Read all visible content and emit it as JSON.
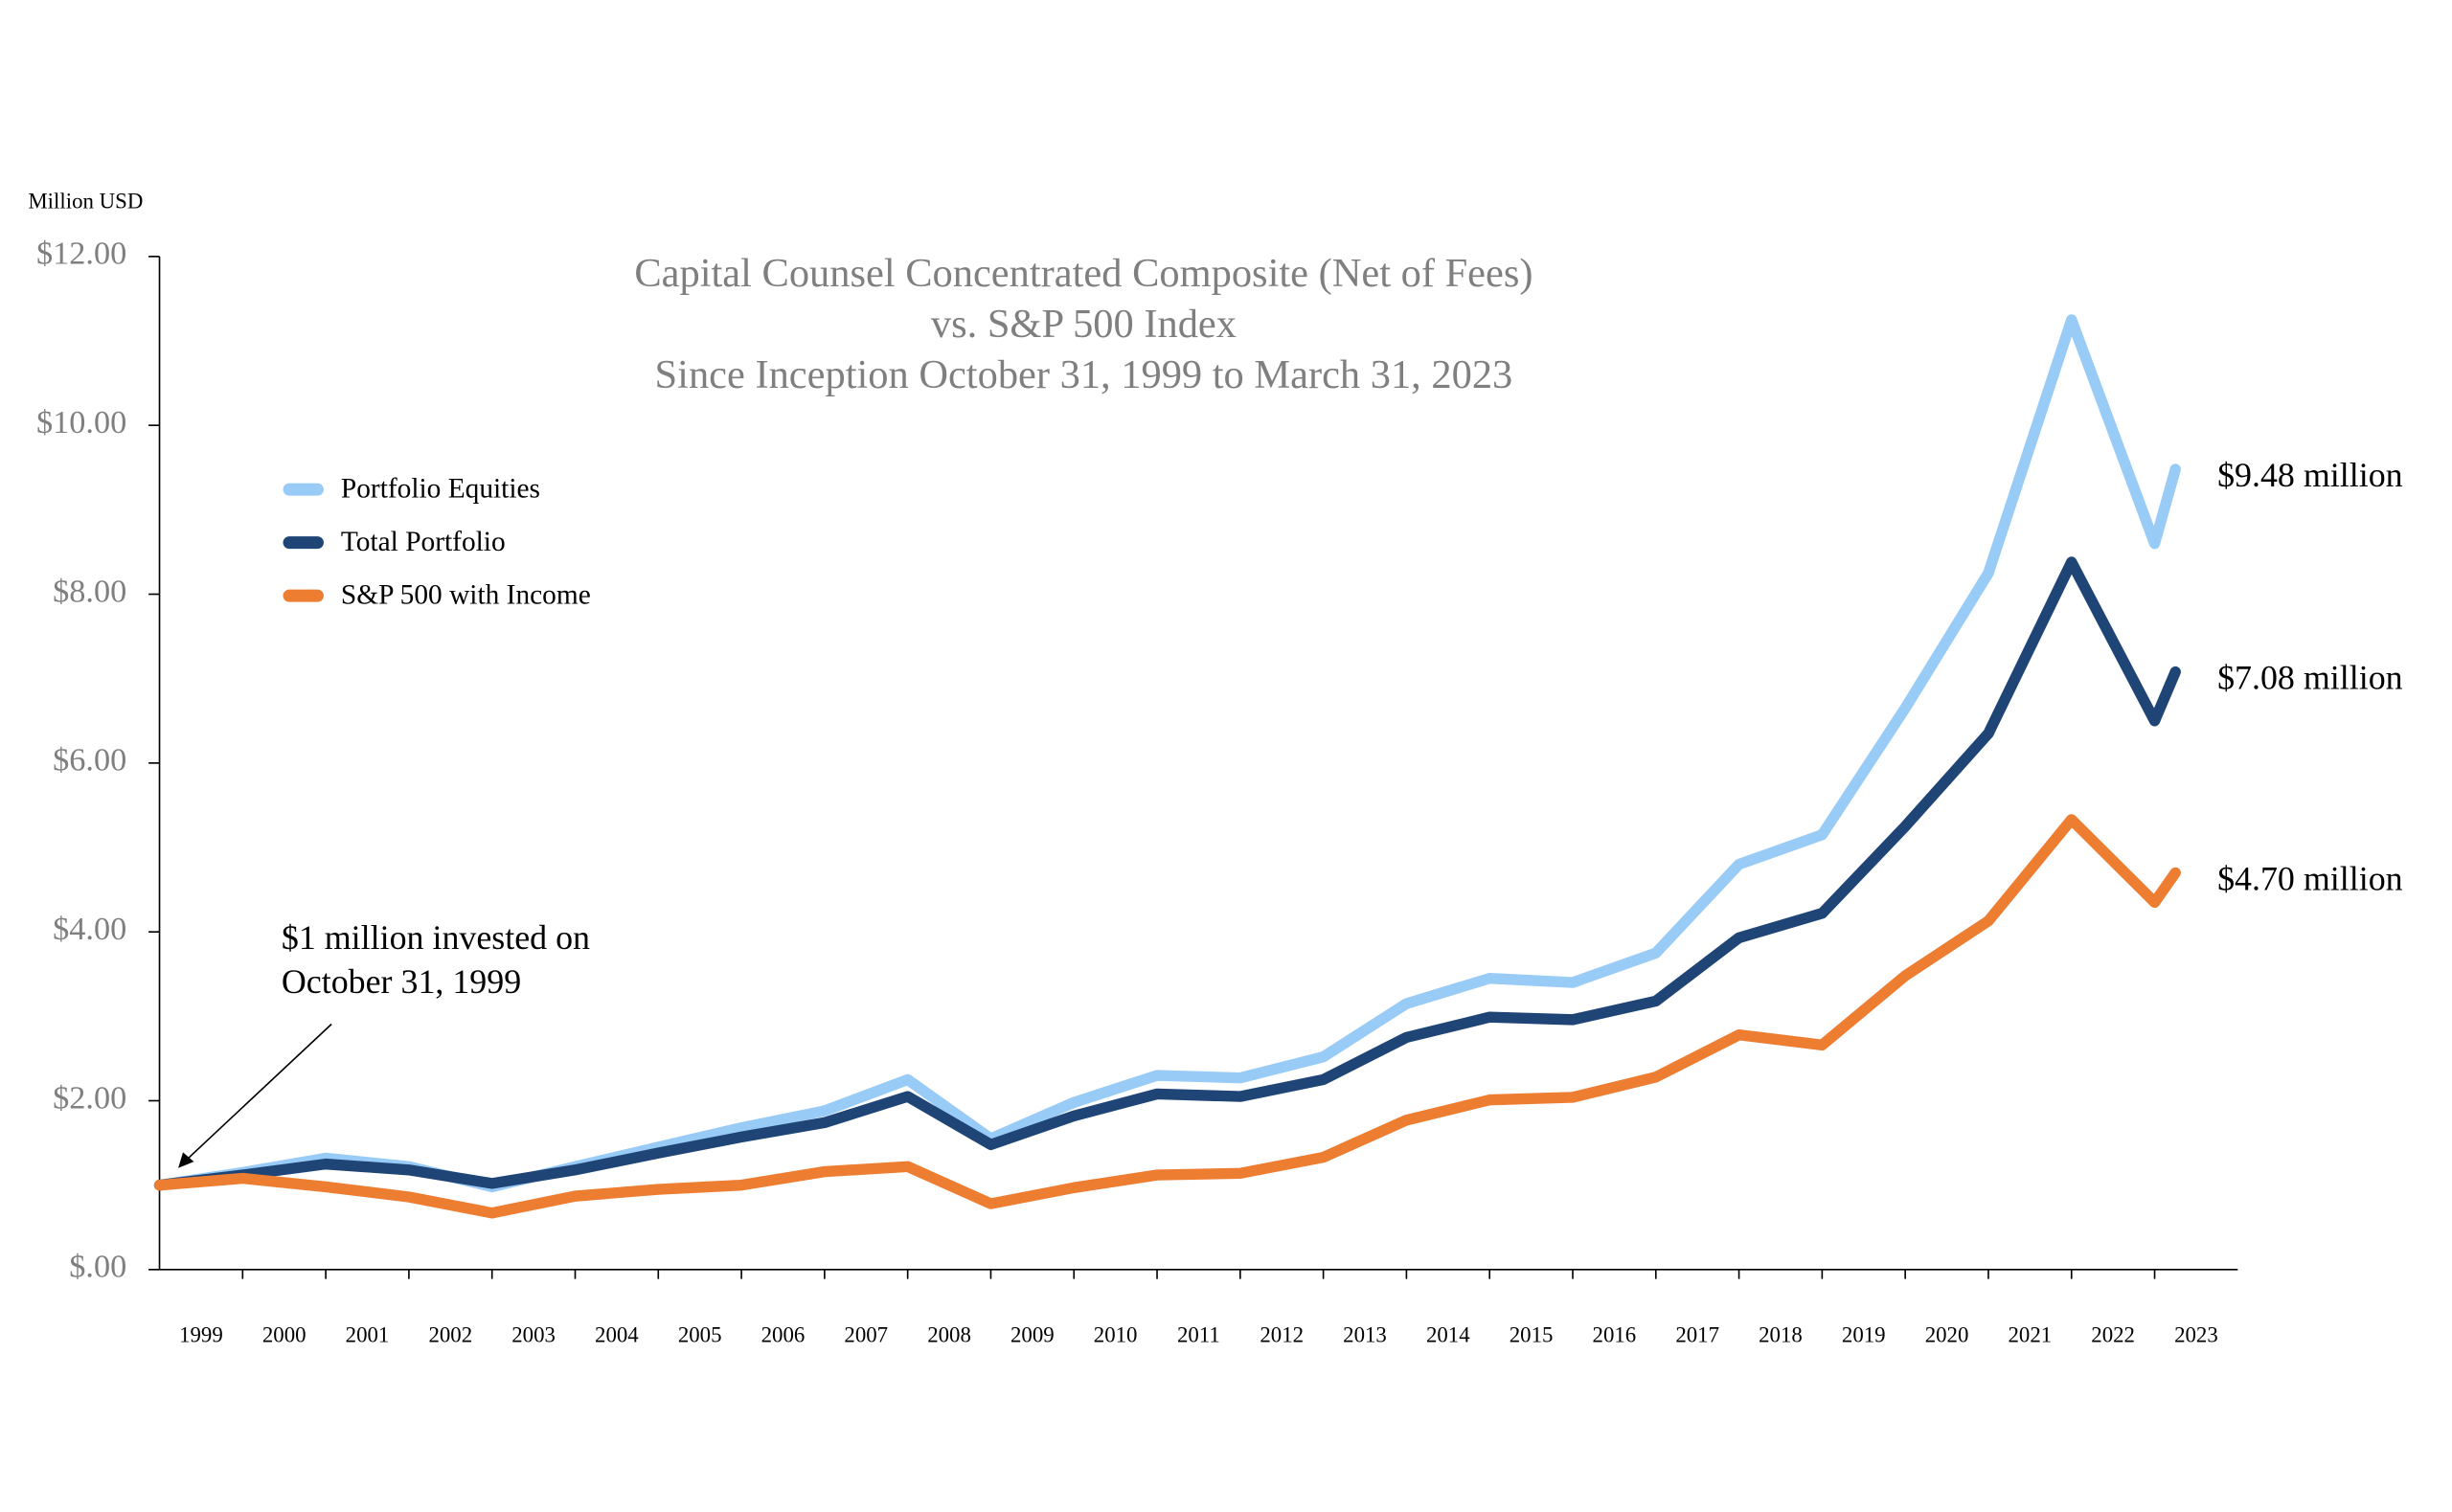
{
  "chart_data": {
    "type": "line",
    "title": [
      "Capital Counsel Concentrated Composite (Net of Fees)",
      "vs. S&P 500 Index",
      "Since Inception October 31, 1999 to March 31, 2023"
    ],
    "y_axis_label": "Million USD",
    "annotation": [
      "$1 million invested on",
      "October 31, 1999"
    ],
    "categories": [
      "1999",
      "2000",
      "2001",
      "2002",
      "2003",
      "2004",
      "2005",
      "2006",
      "2007",
      "2008",
      "2009",
      "2010",
      "2011",
      "2012",
      "2013",
      "2014",
      "2015",
      "2016",
      "2017",
      "2018",
      "2019",
      "2020",
      "2021",
      "2022",
      "2023"
    ],
    "x": [
      1999,
      2000,
      2001,
      2002,
      2003,
      2004,
      2005,
      2006,
      2007,
      2008,
      2009,
      2010,
      2011,
      2012,
      2013,
      2014,
      2015,
      2016,
      2017,
      2018,
      2019,
      2020,
      2021,
      2022,
      2023,
      2023.25
    ],
    "xlim": [
      1999,
      2024
    ],
    "xticks": [
      2000,
      2001,
      2002,
      2003,
      2004,
      2005,
      2006,
      2007,
      2008,
      2009,
      2010,
      2011,
      2012,
      2013,
      2014,
      2015,
      2016,
      2017,
      2018,
      2019,
      2020,
      2021,
      2022,
      2023
    ],
    "ylim": [
      0,
      12
    ],
    "yticks": [
      {
        "value": 0,
        "label": "$.00"
      },
      {
        "value": 2,
        "label": "$2.00"
      },
      {
        "value": 4,
        "label": "$4.00"
      },
      {
        "value": 6,
        "label": "$6.00"
      },
      {
        "value": 8,
        "label": "$8.00"
      },
      {
        "value": 10,
        "label": "$10.00"
      },
      {
        "value": 12,
        "label": "$12.00"
      }
    ],
    "legend": "upper left",
    "series": [
      {
        "name": "Portfolio Equities",
        "color": "#99cbf7",
        "values": [
          1.0,
          1.15,
          1.32,
          1.22,
          0.98,
          1.22,
          1.45,
          1.68,
          1.88,
          2.25,
          1.55,
          1.98,
          2.3,
          2.27,
          2.52,
          3.15,
          3.45,
          3.4,
          3.75,
          4.8,
          5.15,
          6.65,
          8.25,
          11.25,
          8.6,
          9.48
        ],
        "value_labels": [
          null,
          null,
          null,
          null,
          null,
          null,
          null,
          null,
          null,
          null,
          null,
          null,
          null,
          null,
          null,
          null,
          null,
          null,
          null,
          null,
          null,
          null,
          null,
          null,
          null,
          "$9.48 million"
        ]
      },
      {
        "name": "Total Portfolio",
        "color": "#1f4577",
        "values": [
          1.0,
          1.12,
          1.25,
          1.18,
          1.02,
          1.18,
          1.38,
          1.57,
          1.74,
          2.05,
          1.48,
          1.82,
          2.08,
          2.05,
          2.25,
          2.75,
          2.99,
          2.96,
          3.18,
          3.93,
          4.22,
          5.25,
          6.35,
          8.38,
          6.5,
          7.08
        ],
        "value_labels": [
          null,
          null,
          null,
          null,
          null,
          null,
          null,
          null,
          null,
          null,
          null,
          null,
          null,
          null,
          null,
          null,
          null,
          null,
          null,
          null,
          null,
          null,
          null,
          null,
          null,
          "$7.08 million"
        ]
      },
      {
        "name": "S&P 500 with Income",
        "color": "#ed7d31",
        "values": [
          1.0,
          1.08,
          0.98,
          0.86,
          0.67,
          0.87,
          0.95,
          1.0,
          1.16,
          1.22,
          0.78,
          0.97,
          1.12,
          1.14,
          1.33,
          1.77,
          2.01,
          2.04,
          2.28,
          2.78,
          2.66,
          3.48,
          4.13,
          5.33,
          4.35,
          4.7
        ],
        "value_labels": [
          null,
          null,
          null,
          null,
          null,
          null,
          null,
          null,
          null,
          null,
          null,
          null,
          null,
          null,
          null,
          null,
          null,
          null,
          null,
          null,
          null,
          null,
          null,
          null,
          null,
          "$4.70 million"
        ]
      }
    ]
  }
}
